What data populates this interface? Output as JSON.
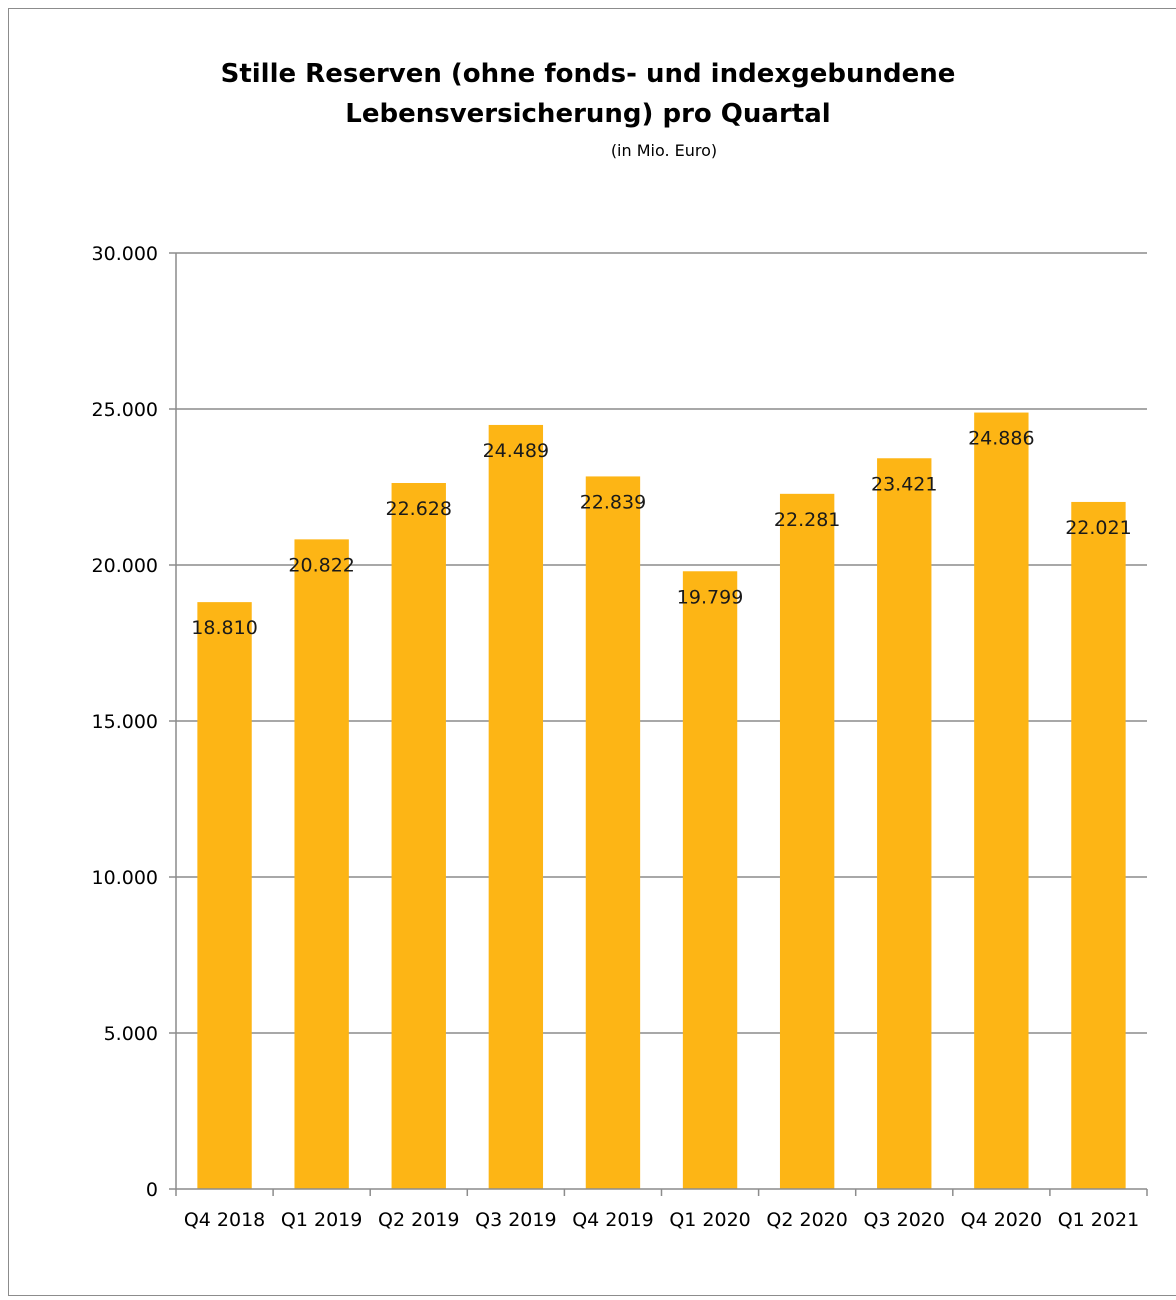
{
  "chart_data": {
    "type": "bar",
    "title_line1": "Stille Reserven (ohne fonds- und indexgebundene",
    "title_line2": "Lebensversicherung) pro Quartal",
    "subtitle": "(in Mio. Euro)",
    "categories": [
      "Q4 2018",
      "Q1 2019",
      "Q2 2019",
      "Q3 2019",
      "Q4 2019",
      "Q1 2020",
      "Q2 2020",
      "Q3 2020",
      "Q4 2020",
      "Q1 2021"
    ],
    "values": [
      18810,
      20822,
      22628,
      24489,
      22839,
      19799,
      22281,
      23421,
      24886,
      22021
    ],
    "value_labels": [
      "18.810",
      "20.822",
      "22.628",
      "24.489",
      "22.839",
      "19.799",
      "22.281",
      "23.421",
      "24.886",
      "22.021"
    ],
    "y_ticks": [
      0,
      5000,
      10000,
      15000,
      20000,
      25000,
      30000
    ],
    "y_tick_labels": [
      "0",
      "5.000",
      "10.000",
      "15.000",
      "20.000",
      "25.000",
      "30.000"
    ],
    "ylim": [
      0,
      30000
    ],
    "xlabel": "",
    "ylabel": "",
    "grid": true,
    "legend": "none",
    "bar_color": "#FDB515",
    "grid_color": "#8c8c8c"
  }
}
